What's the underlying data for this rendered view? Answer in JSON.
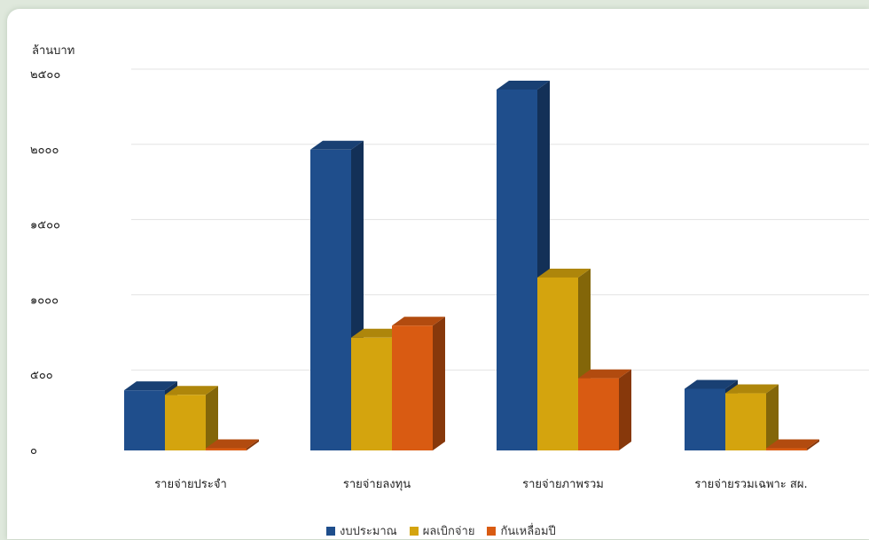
{
  "chart_data": {
    "type": "bar",
    "ylabel": "ล้านบาท",
    "ylim": [
      0,
      2500
    ],
    "yticks": [
      0,
      500,
      1000,
      1500,
      2000,
      2500
    ],
    "ytick_labels": [
      "๐",
      "๕๐๐",
      "๑๐๐๐",
      "๑๕๐๐",
      "๒๐๐๐",
      "๒๕๐๐"
    ],
    "categories": [
      "รายจ่ายประจำ",
      "รายจ่ายลงทุน",
      "รายจ่ายภาพรวม",
      "รายจ่ายรวมเฉพาะ สผ."
    ],
    "series": [
      {
        "name": "งบประมาณ",
        "values": [
          400,
          2000,
          2400,
          410
        ],
        "color": "#1f4e8c"
      },
      {
        "name": "ผลเบิกจ่าย",
        "values": [
          370,
          750,
          1150,
          380
        ],
        "color": "#d4a40e"
      },
      {
        "name": "กันเหลื่อมปี",
        "values": [
          15,
          830,
          480,
          15
        ],
        "color": "#d95b12"
      }
    ],
    "grid": true,
    "legend_position": "bottom"
  }
}
